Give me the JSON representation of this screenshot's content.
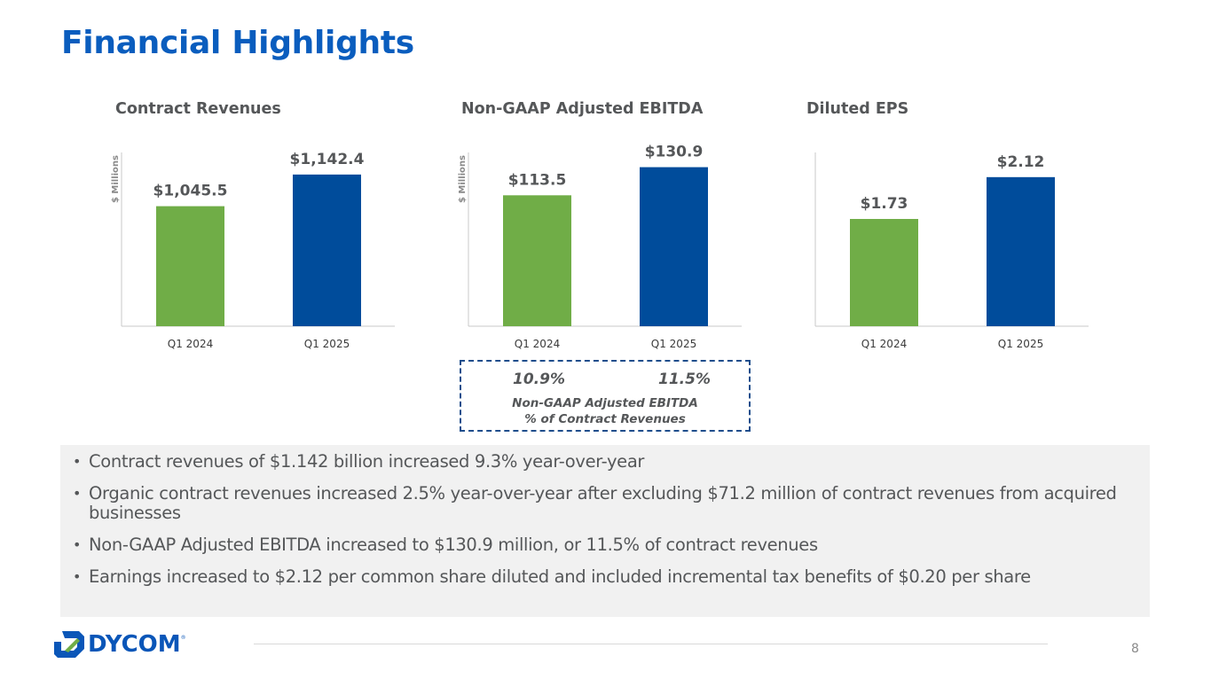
{
  "page": {
    "title": "Financial Highlights",
    "page_number": "8",
    "logo_text": "DYCOM",
    "logo_mark": "®"
  },
  "colors": {
    "title_blue": "#0a5dbe",
    "bar_prior": "#70ad47",
    "bar_current": "#004c9b",
    "text_gray": "#555759",
    "panel_gray": "#f1f1f1",
    "box_border": "#1f4e8c"
  },
  "chart_data": [
    {
      "type": "bar",
      "title": "Contract Revenues",
      "ylabel": "$ Millions",
      "xlabel": "",
      "categories": [
        "Q1 2024",
        "Q1 2025"
      ],
      "values": [
        1045.5,
        1142.4
      ],
      "value_labels": [
        "$1,045.5",
        "$1,142.4"
      ],
      "ylim": [
        678,
        1210
      ],
      "grid": false
    },
    {
      "type": "bar",
      "title": "Non-GAAP Adjusted EBITDA",
      "ylabel": "$ Millions",
      "xlabel": "",
      "categories": [
        "Q1 2024",
        "Q1 2025"
      ],
      "values": [
        113.5,
        130.9
      ],
      "value_labels": [
        "$113.5",
        "$130.9"
      ],
      "ylim": [
        32.5,
        140
      ],
      "grid": false
    },
    {
      "type": "bar",
      "title": "Diluted EPS",
      "ylabel": "",
      "xlabel": "",
      "categories": [
        "Q1 2024",
        "Q1 2025"
      ],
      "values": [
        1.73,
        2.12
      ],
      "value_labels": [
        "$1.73",
        "$2.12"
      ],
      "ylim": [
        0.73,
        2.35
      ],
      "grid": false
    }
  ],
  "ebitda_margin": {
    "values": [
      "10.9%",
      "11.5%"
    ],
    "caption_line1": "Non-GAAP Adjusted EBITDA",
    "caption_line2": "% of Contract Revenues"
  },
  "bullets": [
    "Contract revenues of $1.142 billion increased 9.3% year-over-year",
    "Organic contract revenues increased 2.5% year-over-year after excluding $71.2 million of contract revenues from acquired businesses",
    "Non-GAAP Adjusted EBITDA increased to $130.9 million, or 11.5% of contract revenues",
    "Earnings increased to $2.12 per common share diluted and included incremental tax benefits of $0.20 per share"
  ],
  "bullet_symbol": "•"
}
